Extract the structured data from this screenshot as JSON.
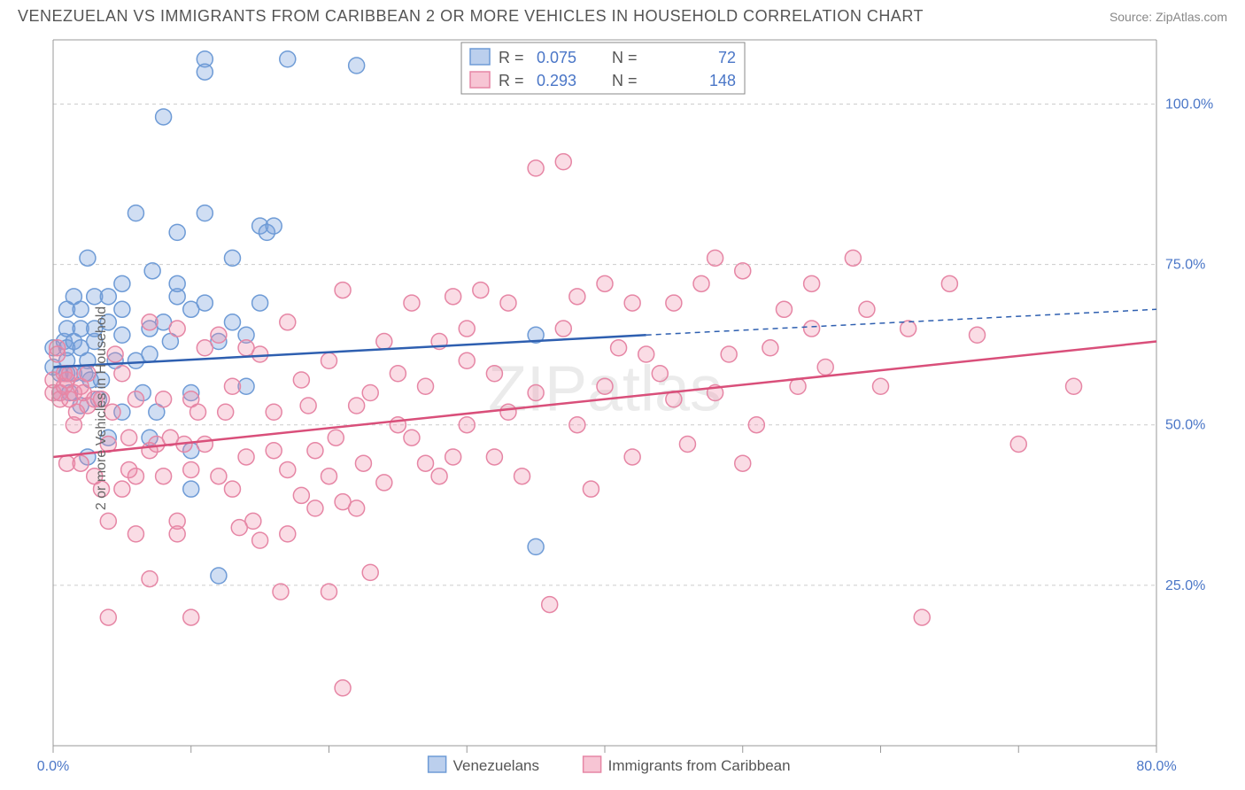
{
  "header": {
    "title": "VENEZUELAN VS IMMIGRANTS FROM CARIBBEAN 2 OR MORE VEHICLES IN HOUSEHOLD CORRELATION CHART",
    "source": "Source: ZipAtlas.com"
  },
  "chart": {
    "type": "scatter",
    "ylabel": "2 or more Vehicles in Household",
    "watermark": "ZIPatlas",
    "background_color": "#ffffff",
    "grid_color": "#cccccc",
    "axis_color": "#999999",
    "tick_label_color": "#4a76c7",
    "xlim": [
      0,
      80
    ],
    "ylim": [
      0,
      110
    ],
    "xticks": [
      0,
      80
    ],
    "xtick_labels": [
      "0.0%",
      "80.0%"
    ],
    "x_minor_ticks": [
      10,
      20,
      30,
      40,
      50,
      60,
      70
    ],
    "yticks": [
      25,
      50,
      75,
      100
    ],
    "ytick_labels": [
      "25.0%",
      "50.0%",
      "75.0%",
      "100.0%"
    ],
    "marker_radius": 9,
    "marker_stroke_width": 1.5,
    "trend_line_width": 2.5,
    "series": [
      {
        "name": "Venezuelans",
        "color_fill": "rgba(120,160,220,0.35)",
        "color_stroke": "#6e9bd6",
        "trend_color": "#2e5fb0",
        "R": "0.075",
        "N": "72",
        "trend": {
          "x1": 0,
          "y1": 59,
          "x2": 43,
          "y2": 64,
          "x_ext": 80,
          "y_ext": 68
        },
        "points": [
          [
            0,
            59
          ],
          [
            0,
            62
          ],
          [
            0.5,
            58
          ],
          [
            0.5,
            55
          ],
          [
            0.8,
            63
          ],
          [
            1,
            58
          ],
          [
            1,
            60
          ],
          [
            1,
            62
          ],
          [
            1,
            65
          ],
          [
            1,
            68
          ],
          [
            1.2,
            55
          ],
          [
            1.5,
            58
          ],
          [
            1.5,
            63
          ],
          [
            1.5,
            70
          ],
          [
            2,
            53
          ],
          [
            2,
            62
          ],
          [
            2,
            65
          ],
          [
            2,
            68
          ],
          [
            2.3,
            58
          ],
          [
            2.5,
            45
          ],
          [
            2.5,
            60
          ],
          [
            2.5,
            76
          ],
          [
            2.7,
            57
          ],
          [
            3,
            63
          ],
          [
            3,
            65
          ],
          [
            3,
            70
          ],
          [
            3.3,
            54
          ],
          [
            3.5,
            57
          ],
          [
            4,
            48
          ],
          [
            4,
            66
          ],
          [
            4,
            70
          ],
          [
            4.5,
            60
          ],
          [
            5,
            52
          ],
          [
            5,
            64
          ],
          [
            5,
            68
          ],
          [
            5,
            72
          ],
          [
            6,
            83
          ],
          [
            6,
            60
          ],
          [
            6.5,
            55
          ],
          [
            7,
            48
          ],
          [
            7,
            61
          ],
          [
            7,
            65
          ],
          [
            7.2,
            74
          ],
          [
            7.5,
            52
          ],
          [
            8,
            66
          ],
          [
            8,
            98
          ],
          [
            8.5,
            63
          ],
          [
            9,
            70
          ],
          [
            9,
            80
          ],
          [
            9,
            72
          ],
          [
            10,
            40
          ],
          [
            10,
            46
          ],
          [
            10,
            55
          ],
          [
            10,
            68
          ],
          [
            11,
            107
          ],
          [
            11,
            105
          ],
          [
            11,
            83
          ],
          [
            11,
            69
          ],
          [
            12,
            26.5
          ],
          [
            12,
            63
          ],
          [
            13,
            66
          ],
          [
            13,
            76
          ],
          [
            14,
            56
          ],
          [
            14,
            64
          ],
          [
            15,
            81
          ],
          [
            15,
            69
          ],
          [
            15.5,
            80
          ],
          [
            16,
            81
          ],
          [
            17,
            107
          ],
          [
            22,
            106
          ],
          [
            35,
            64
          ],
          [
            35,
            31
          ]
        ]
      },
      {
        "name": "Immigrants from Caribbean",
        "color_fill": "rgba(240,140,170,0.30)",
        "color_stroke": "#e686a5",
        "trend_color": "#d94f7a",
        "R": "0.293",
        "N": "148",
        "trend": {
          "x1": 0,
          "y1": 45,
          "x2": 80,
          "y2": 63,
          "x_ext": 80,
          "y_ext": 63
        },
        "points": [
          [
            0,
            57
          ],
          [
            0,
            55
          ],
          [
            0.3,
            61
          ],
          [
            0.3,
            62
          ],
          [
            0.5,
            54
          ],
          [
            0.5,
            55
          ],
          [
            0.8,
            58
          ],
          [
            0.8,
            56
          ],
          [
            1,
            44
          ],
          [
            1,
            57
          ],
          [
            1.2,
            54
          ],
          [
            1.2,
            58
          ],
          [
            1.5,
            50
          ],
          [
            1.5,
            55
          ],
          [
            1.7,
            52
          ],
          [
            2,
            44
          ],
          [
            2,
            56
          ],
          [
            2.2,
            55
          ],
          [
            2.5,
            53
          ],
          [
            2.5,
            58
          ],
          [
            3,
            42
          ],
          [
            3,
            54
          ],
          [
            3.5,
            54
          ],
          [
            3.5,
            40
          ],
          [
            4,
            35
          ],
          [
            4,
            47
          ],
          [
            4,
            20
          ],
          [
            4.3,
            52
          ],
          [
            4.5,
            61
          ],
          [
            5,
            40
          ],
          [
            5,
            58
          ],
          [
            5.5,
            48
          ],
          [
            5.5,
            43
          ],
          [
            6,
            33
          ],
          [
            6,
            42
          ],
          [
            6,
            54
          ],
          [
            7,
            26
          ],
          [
            7,
            46
          ],
          [
            7,
            66
          ],
          [
            7.5,
            47
          ],
          [
            8,
            54
          ],
          [
            8,
            42
          ],
          [
            8.5,
            48
          ],
          [
            9,
            33
          ],
          [
            9,
            35
          ],
          [
            9,
            65
          ],
          [
            9.5,
            47
          ],
          [
            10,
            43
          ],
          [
            10,
            54
          ],
          [
            10,
            20
          ],
          [
            10.5,
            52
          ],
          [
            11,
            62
          ],
          [
            11,
            47
          ],
          [
            12,
            42
          ],
          [
            12,
            64
          ],
          [
            12.5,
            52
          ],
          [
            13,
            56
          ],
          [
            13,
            40
          ],
          [
            13.5,
            34
          ],
          [
            14,
            45
          ],
          [
            14,
            62
          ],
          [
            14.5,
            35
          ],
          [
            15,
            32
          ],
          [
            15,
            61
          ],
          [
            16,
            46
          ],
          [
            16,
            52
          ],
          [
            16.5,
            24
          ],
          [
            17,
            33
          ],
          [
            17,
            43
          ],
          [
            17,
            66
          ],
          [
            18,
            39
          ],
          [
            18,
            57
          ],
          [
            18.5,
            53
          ],
          [
            19,
            46
          ],
          [
            19,
            37
          ],
          [
            20,
            24
          ],
          [
            20,
            42
          ],
          [
            20,
            60
          ],
          [
            20.5,
            48
          ],
          [
            21,
            9
          ],
          [
            21,
            38
          ],
          [
            21,
            71
          ],
          [
            22,
            37
          ],
          [
            22,
            53
          ],
          [
            22.5,
            44
          ],
          [
            23,
            27
          ],
          [
            23,
            55
          ],
          [
            24,
            41
          ],
          [
            24,
            63
          ],
          [
            25,
            50
          ],
          [
            25,
            58
          ],
          [
            26,
            48
          ],
          [
            26,
            69
          ],
          [
            27,
            44
          ],
          [
            27,
            56
          ],
          [
            28,
            42
          ],
          [
            28,
            63
          ],
          [
            29,
            70
          ],
          [
            29,
            45
          ],
          [
            30,
            50
          ],
          [
            30,
            60
          ],
          [
            30,
            65
          ],
          [
            31,
            71
          ],
          [
            32,
            58
          ],
          [
            32,
            45
          ],
          [
            33,
            52
          ],
          [
            33,
            69
          ],
          [
            34,
            42
          ],
          [
            35,
            55
          ],
          [
            35,
            90
          ],
          [
            36,
            22
          ],
          [
            37,
            91
          ],
          [
            37,
            65
          ],
          [
            38,
            70
          ],
          [
            38,
            50
          ],
          [
            39,
            40
          ],
          [
            40,
            56
          ],
          [
            40,
            72
          ],
          [
            41,
            62
          ],
          [
            42,
            45
          ],
          [
            42,
            69
          ],
          [
            43,
            61
          ],
          [
            44,
            58
          ],
          [
            45,
            54
          ],
          [
            45,
            69
          ],
          [
            46,
            47
          ],
          [
            47,
            72
          ],
          [
            48,
            76
          ],
          [
            48,
            55
          ],
          [
            49,
            61
          ],
          [
            50,
            74
          ],
          [
            50,
            44
          ],
          [
            51,
            50
          ],
          [
            52,
            62
          ],
          [
            53,
            68
          ],
          [
            54,
            56
          ],
          [
            55,
            72
          ],
          [
            55,
            65
          ],
          [
            56,
            59
          ],
          [
            58,
            76
          ],
          [
            59,
            68
          ],
          [
            60,
            56
          ],
          [
            62,
            65
          ],
          [
            63,
            20
          ],
          [
            65,
            72
          ],
          [
            67,
            64
          ],
          [
            70,
            47
          ],
          [
            74,
            56
          ]
        ]
      }
    ],
    "legend_top": {
      "fill_blue": "rgba(120,160,220,0.5)",
      "stroke_blue": "#6e9bd6",
      "fill_pink": "rgba(240,140,170,0.5)",
      "stroke_pink": "#e686a5"
    },
    "legend_bottom": {
      "label1": "Venezuelans",
      "label2": "Immigrants from Caribbean"
    }
  }
}
